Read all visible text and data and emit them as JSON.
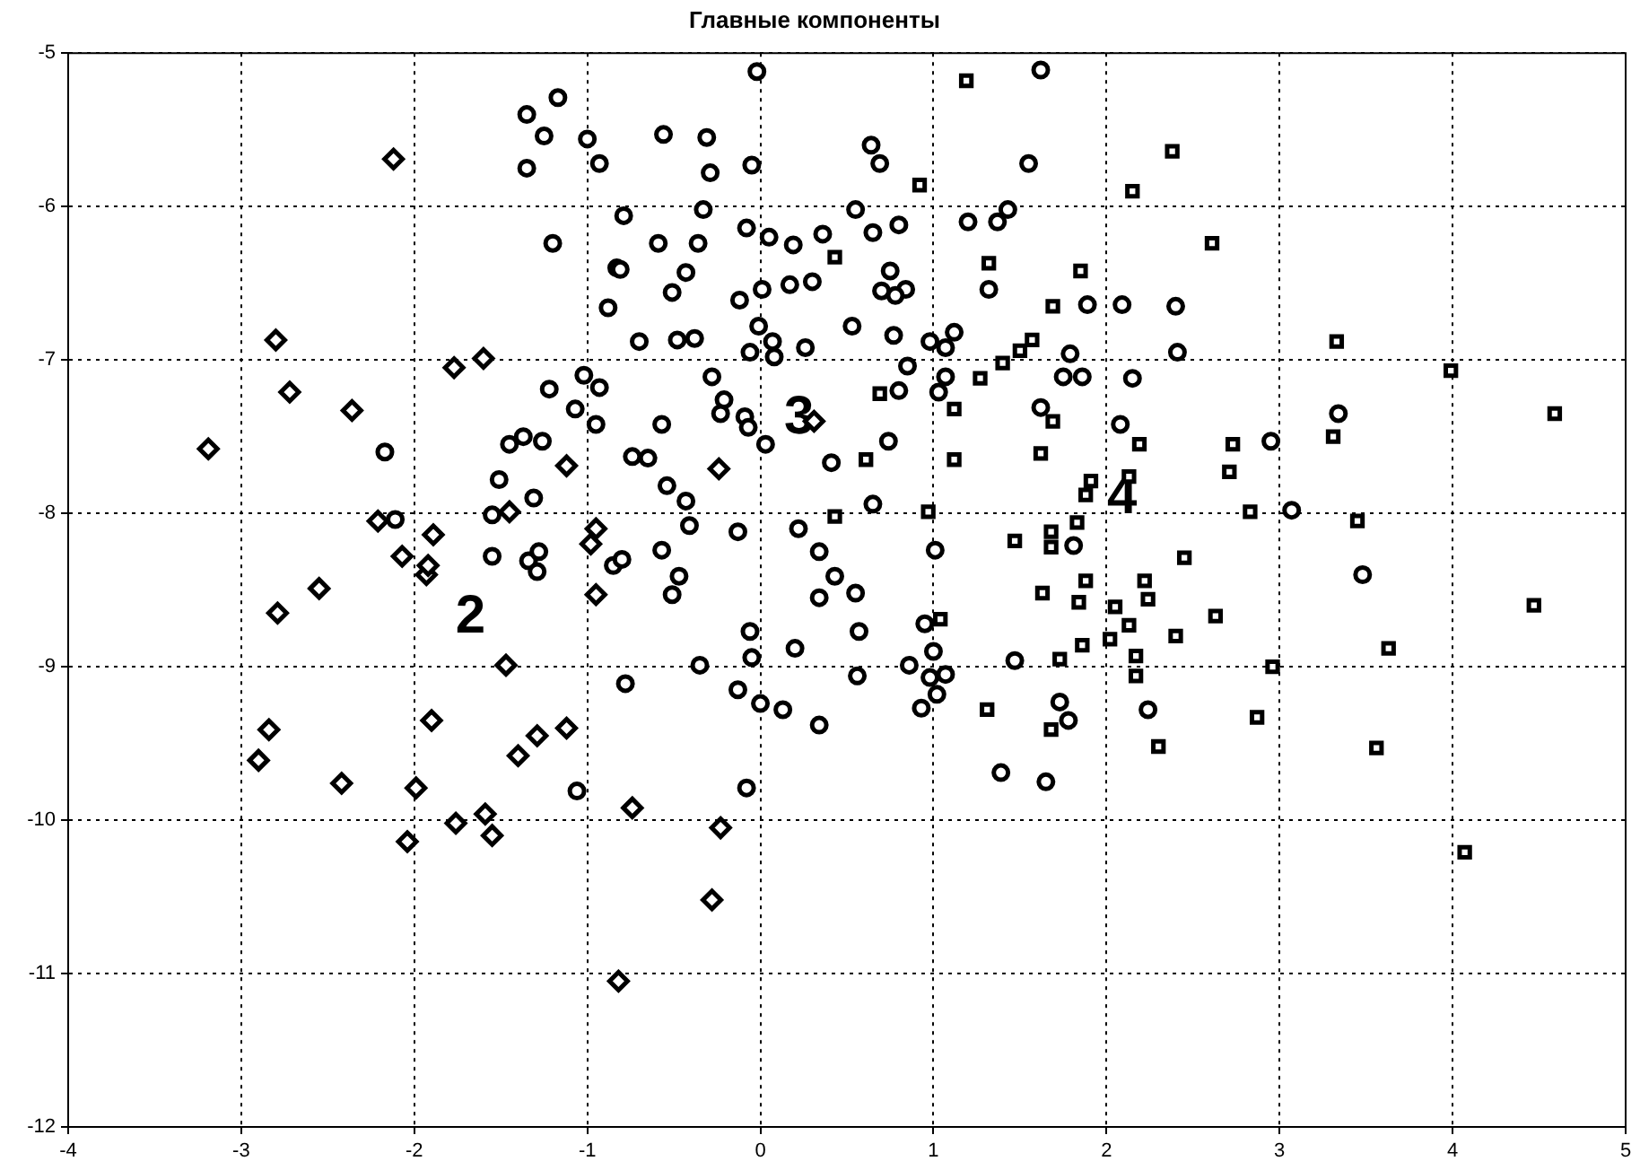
{
  "chart_data": {
    "type": "scatter",
    "title": "Главные компоненты",
    "xlim": [
      -4,
      5
    ],
    "xticks": [
      -4,
      -3,
      -2,
      -1,
      0,
      1,
      2,
      3,
      4,
      5
    ],
    "ylim": [
      -12,
      -5
    ],
    "yticks": [
      -12,
      -11,
      -10,
      -9,
      -8,
      -7,
      -6,
      -5
    ],
    "grid": true,
    "line_style": "dotted",
    "series": [
      {
        "name": "2",
        "color": "#000000",
        "marker": "diamond",
        "x": [
          -2.79,
          -2.55,
          -1.93,
          -0.95,
          -1.47,
          -2.84,
          -2.9,
          -2.42,
          -1.9,
          -1.99,
          -2.04,
          -1.76,
          -1.59,
          -1.55,
          -1.4,
          -1.29,
          -1.12,
          -0.82,
          -0.74,
          -0.23,
          -0.28,
          -2.12,
          -2.8,
          -2.72,
          -3.19,
          -2.36,
          -1.77,
          -1.6,
          -1.12,
          -2.21,
          -2.07,
          -1.92,
          -1.89,
          -1.45,
          -0.95,
          -0.98,
          0.31,
          -0.24
        ],
        "values": [
          -8.65,
          -8.49,
          -8.4,
          -8.53,
          -8.99,
          -9.41,
          -9.61,
          -9.76,
          -9.35,
          -9.79,
          -10.14,
          -10.02,
          -9.96,
          -10.1,
          -9.58,
          -9.45,
          -9.4,
          -11.05,
          -9.92,
          -10.05,
          -10.52,
          -5.69,
          -6.87,
          -7.21,
          -7.58,
          -7.33,
          -7.05,
          -6.99,
          -7.69,
          -8.05,
          -8.28,
          -8.34,
          -8.14,
          -7.99,
          -8.1,
          -8.2,
          -7.4,
          -7.71
        ]
      },
      {
        "name": "3",
        "color": "#000000",
        "marker": "circle",
        "x": [
          -1.17,
          -1.35,
          -1.25,
          -1.0,
          -0.93,
          -1.35,
          -1.2,
          -0.88,
          -0.83,
          -1.22,
          -1.02,
          -0.93,
          -1.07,
          -0.95,
          -2.17,
          -1.45,
          -1.37,
          -1.26,
          -1.51,
          -1.31,
          -1.55,
          -2.11,
          -1.55,
          -1.34,
          -1.28,
          -1.29,
          -0.85,
          -0.02,
          -0.56,
          -0.31,
          -0.29,
          -0.05,
          0.64,
          0.69,
          1.62,
          1.55,
          -0.79,
          -0.33,
          -0.59,
          -0.36,
          -0.08,
          0.05,
          0.19,
          0.55,
          0.65,
          0.8,
          0.36,
          -0.81,
          -0.43,
          -0.51,
          -0.12,
          0.01,
          0.17,
          0.3,
          0.75,
          0.7,
          0.84,
          0.78,
          -0.01,
          0.07,
          0.08,
          -0.06,
          0.26,
          0.53,
          0.77,
          0.98,
          1.12,
          1.07,
          0.85,
          -0.7,
          -0.48,
          -0.38,
          1.32,
          1.37,
          1.43,
          1.2,
          1.89,
          2.09,
          -0.28,
          -0.21,
          -0.23,
          -0.09,
          -0.07,
          0.03,
          0.74,
          1.07,
          1.03,
          0.8,
          0.41,
          -0.54,
          -0.43,
          0.65,
          -0.41,
          -0.13,
          0.22,
          0.34,
          -0.57,
          -0.8,
          1.01,
          1.62,
          1.79,
          1.75,
          1.86,
          2.15,
          2.08,
          1.81,
          2.4,
          2.41,
          2.95,
          3.34,
          3.07,
          3.48,
          -0.47,
          -0.51,
          0.34,
          0.55,
          0.43,
          -0.06,
          -0.05,
          0.2,
          0.57,
          -0.35,
          -0.78,
          -0.13,
          0.0,
          0.13,
          0.34,
          0.56,
          -0.08,
          0.95,
          0.86,
          1.0,
          0.98,
          1.07,
          1.02,
          0.93,
          1.47,
          1.73,
          1.78,
          1.39,
          1.65,
          2.24,
          -1.06,
          -0.74,
          -0.57,
          -0.65
        ],
        "values": [
          -5.29,
          -5.4,
          -5.54,
          -5.56,
          -5.72,
          -5.75,
          -6.24,
          -6.66,
          -6.4,
          -7.19,
          -7.1,
          -7.18,
          -7.32,
          -7.42,
          -7.6,
          -7.55,
          -7.5,
          -7.53,
          -7.78,
          -7.9,
          -8.01,
          -8.04,
          -8.28,
          -8.31,
          -8.25,
          -8.38,
          -8.34,
          -5.12,
          -5.53,
          -5.55,
          -5.78,
          -5.73,
          -5.6,
          -5.72,
          -5.11,
          -5.72,
          -6.06,
          -6.02,
          -6.24,
          -6.24,
          -6.14,
          -6.2,
          -6.25,
          -6.02,
          -6.17,
          -6.12,
          -6.18,
          -6.41,
          -6.43,
          -6.56,
          -6.61,
          -6.54,
          -6.51,
          -6.49,
          -6.42,
          -6.55,
          -6.54,
          -6.58,
          -6.78,
          -6.88,
          -6.98,
          -6.95,
          -6.92,
          -6.78,
          -6.84,
          -6.88,
          -6.82,
          -6.92,
          -7.04,
          -6.88,
          -6.87,
          -6.86,
          -6.54,
          -6.1,
          -6.02,
          -6.1,
          -6.64,
          -6.64,
          -7.11,
          -7.26,
          -7.35,
          -7.37,
          -7.44,
          -7.55,
          -7.53,
          -7.11,
          -7.21,
          -7.2,
          -7.67,
          -7.82,
          -7.92,
          -7.94,
          -8.08,
          -8.12,
          -8.1,
          -8.25,
          -8.24,
          -8.3,
          -8.24,
          -7.31,
          -6.96,
          -7.11,
          -7.11,
          -7.12,
          -7.42,
          -8.21,
          -6.65,
          -6.95,
          -7.53,
          -7.35,
          -7.98,
          -8.4,
          -8.41,
          -8.53,
          -8.55,
          -8.52,
          -8.41,
          -8.77,
          -8.94,
          -8.88,
          -8.77,
          -8.99,
          -9.11,
          -9.15,
          -9.24,
          -9.28,
          -9.38,
          -9.06,
          -9.79,
          -8.72,
          -8.99,
          -8.9,
          -9.07,
          -9.05,
          -9.18,
          -9.27,
          -8.96,
          -9.23,
          -9.35,
          -9.69,
          -9.75,
          -9.28,
          -9.81,
          -7.63,
          -7.42,
          -7.64
        ]
      },
      {
        "name": "4",
        "color": "#000000",
        "marker": "square",
        "x": [
          1.19,
          0.92,
          2.15,
          0.43,
          1.32,
          1.85,
          1.69,
          1.57,
          1.5,
          1.4,
          1.27,
          0.69,
          1.12,
          1.69,
          0.61,
          1.12,
          1.62,
          1.91,
          1.88,
          2.13,
          2.19,
          0.43,
          0.97,
          1.47,
          1.68,
          1.68,
          1.83,
          2.38,
          2.61,
          3.33,
          3.99,
          4.59,
          2.73,
          3.31,
          2.71,
          2.83,
          3.45,
          2.45,
          2.22,
          2.24,
          2.63,
          2.4,
          2.17,
          2.17,
          2.96,
          2.87,
          2.3,
          3.56,
          3.63,
          4.47,
          4.07,
          1.63,
          1.84,
          1.88,
          2.05,
          2.13,
          1.86,
          2.02,
          1.73,
          1.04,
          1.31,
          1.68
        ],
        "values": [
          -5.18,
          -5.86,
          -5.9,
          -6.33,
          -6.37,
          -6.42,
          -6.65,
          -6.87,
          -6.94,
          -7.02,
          -7.12,
          -7.22,
          -7.32,
          -7.4,
          -7.65,
          -7.65,
          -7.61,
          -7.79,
          -7.88,
          -7.76,
          -7.55,
          -8.02,
          -7.99,
          -8.18,
          -8.12,
          -8.22,
          -8.06,
          -5.64,
          -6.24,
          -6.88,
          -7.07,
          -7.35,
          -7.55,
          -7.5,
          -7.73,
          -7.99,
          -8.05,
          -8.29,
          -8.44,
          -8.56,
          -8.67,
          -8.8,
          -8.93,
          -9.06,
          -9.0,
          -9.33,
          -9.52,
          -9.53,
          -8.88,
          -8.6,
          -10.21,
          -8.52,
          -8.58,
          -8.44,
          -8.61,
          -8.73,
          -8.86,
          -8.82,
          -8.95,
          -8.69,
          -9.28,
          -9.41
        ]
      }
    ]
  }
}
